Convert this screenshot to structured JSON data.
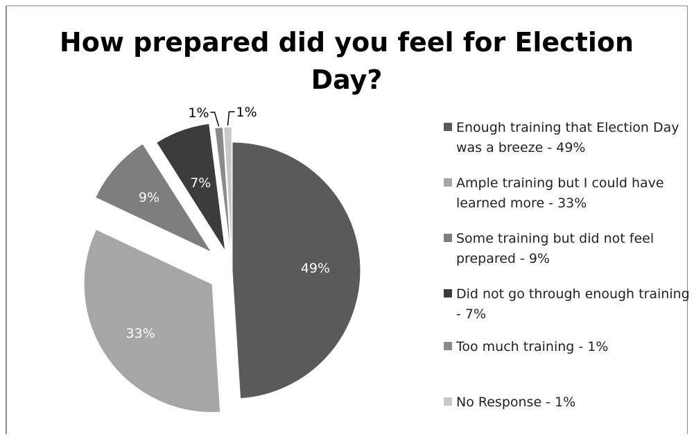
{
  "chart_data": {
    "type": "pie",
    "title": "How prepared did you feel for Election Day?",
    "slices": [
      {
        "legend": "Enough training that Election Day was a breeze - 49%",
        "label": "49%",
        "value": 49,
        "color": "#5a5a5a",
        "label_color": "#ffffff"
      },
      {
        "legend": "Ample training but I could have learned more - 33%",
        "label": "33%",
        "value": 33,
        "color": "#a6a6a6",
        "label_color": "#ffffff"
      },
      {
        "legend": "Some training but did not feel prepared - 9%",
        "label": "9%",
        "value": 9,
        "color": "#7e7e7e",
        "label_color": "#ffffff"
      },
      {
        "legend": "Did not go through enough training - 7%",
        "label": "7%",
        "value": 7,
        "color": "#3c3c3c",
        "label_color": "#ffffff"
      },
      {
        "legend": "Too much training - 1%",
        "label": "1%",
        "value": 1,
        "color": "#8a8a8a",
        "label_color": "#000000"
      },
      {
        "legend": "No Response - 1%",
        "label": "1%",
        "value": 1,
        "color": "#c8c8c8",
        "label_color": "#000000"
      }
    ],
    "exploded": true,
    "legend_position": "right"
  }
}
